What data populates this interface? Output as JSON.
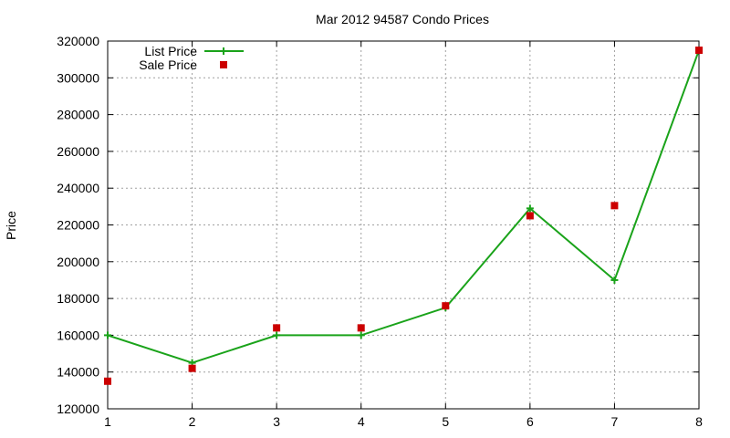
{
  "chart_data": {
    "type": "line",
    "title": "Mar 2012 94587 Condo Prices",
    "xlabel": "",
    "ylabel": "Price",
    "xlim": [
      1,
      8
    ],
    "ylim": [
      120000,
      320000
    ],
    "x_ticks": [
      "1",
      "2",
      "3",
      "4",
      "5",
      "6",
      "7",
      "8"
    ],
    "y_ticks": [
      "120000",
      "140000",
      "160000",
      "180000",
      "200000",
      "220000",
      "240000",
      "260000",
      "280000",
      "300000",
      "320000"
    ],
    "grid": true,
    "legend_position": "top-left",
    "series": [
      {
        "name": "List Price",
        "style": "line-with-plus-markers",
        "color": "#1aa31a",
        "x": [
          1,
          2,
          3,
          4,
          5,
          6,
          7,
          8
        ],
        "values": [
          160000,
          145000,
          160000,
          160000,
          175000,
          229000,
          190000,
          315000
        ]
      },
      {
        "name": "Sale Price",
        "style": "square-markers",
        "color": "#cc0000",
        "x": [
          1,
          2,
          3,
          4,
          5,
          6,
          7,
          8
        ],
        "values": [
          135000,
          142000,
          164000,
          164000,
          176000,
          225000,
          230500,
          315000
        ]
      }
    ]
  }
}
